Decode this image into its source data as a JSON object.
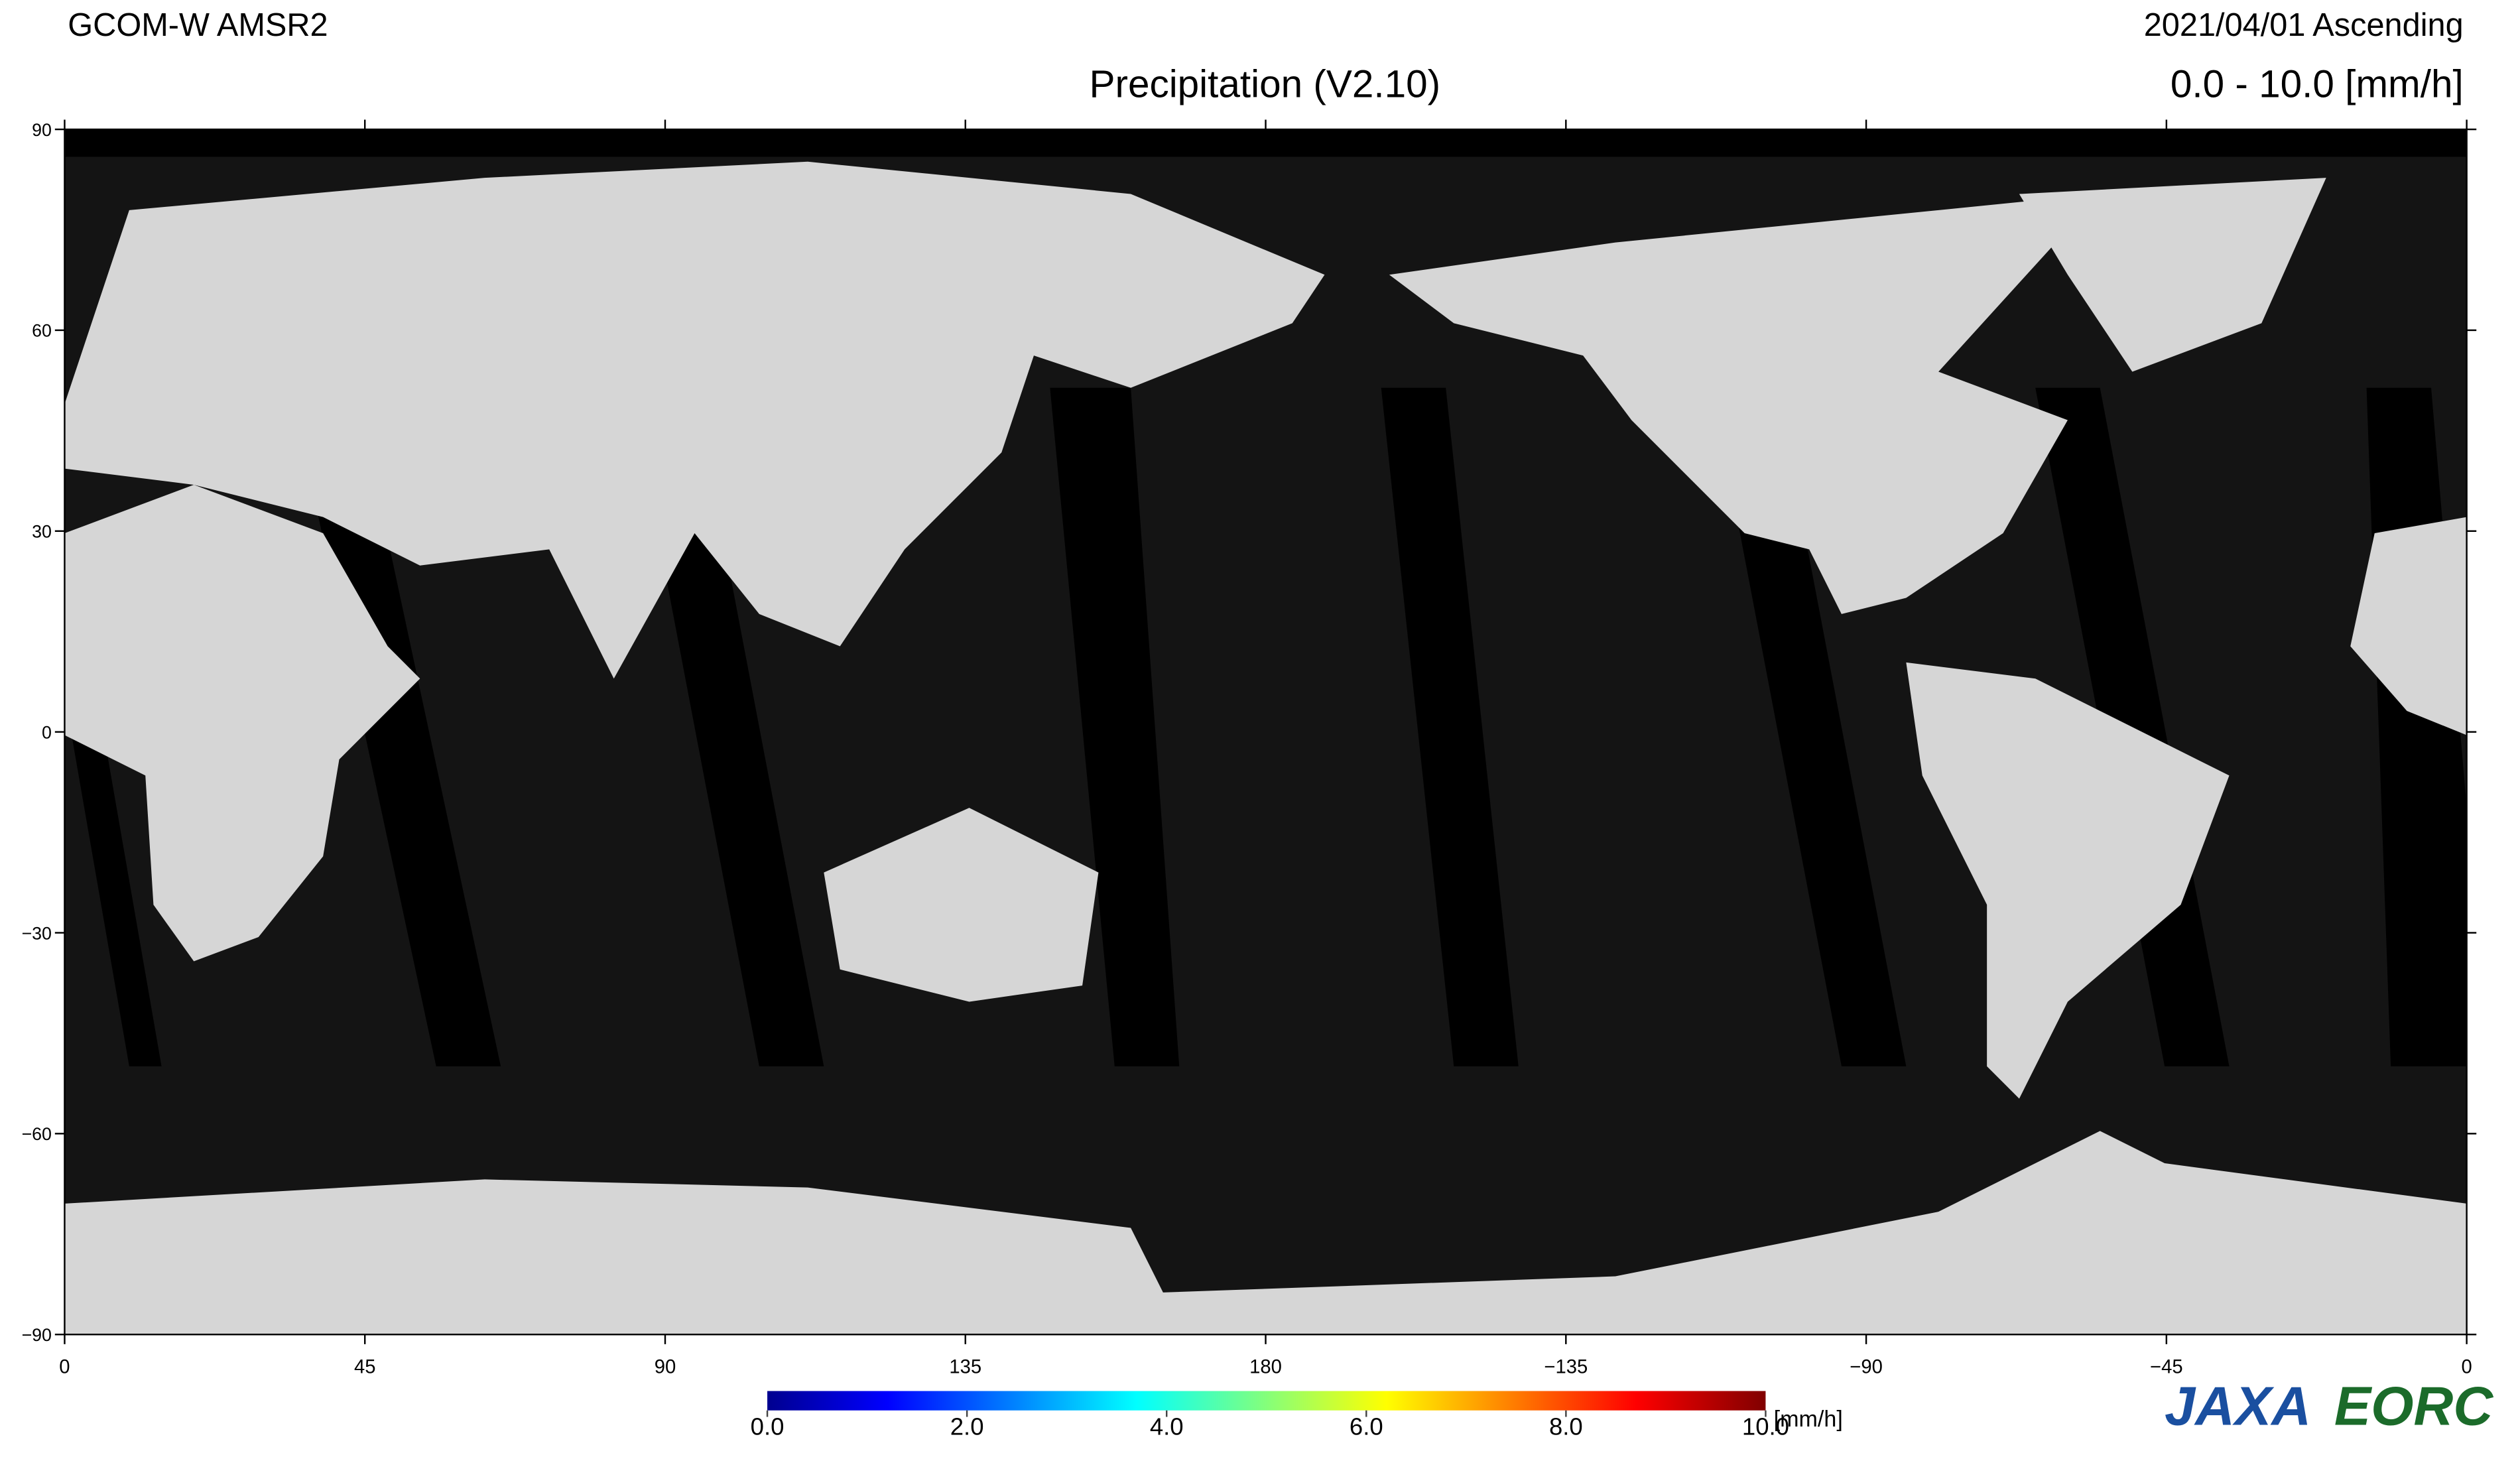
{
  "header": {
    "satellite": "GCOM-W  AMSR2",
    "date": "2021/04/01  Ascending",
    "title": "Precipitation (V2.10)",
    "range": "0.0  - 10.0 [mm/h]"
  },
  "map": {
    "xticks": [
      {
        "value": 0,
        "label": "0"
      },
      45,
      90,
      135,
      180,
      {
        "value": 225,
        "label": "−135"
      },
      {
        "value": 270,
        "label": "−90"
      },
      {
        "value": 315,
        "label": "−45"
      },
      {
        "value": 360,
        "label": "0"
      }
    ],
    "yticks": [
      90,
      60,
      30,
      0,
      {
        "value": -30,
        "label": "−30"
      },
      {
        "value": -60,
        "label": "−60"
      },
      {
        "value": -90,
        "label": "−90"
      }
    ]
  },
  "colorbar": {
    "ticks": [
      {
        "value": 0,
        "label": "0.0"
      },
      {
        "value": 2,
        "label": "2.0"
      },
      {
        "value": 4,
        "label": "4.0"
      },
      {
        "value": 6,
        "label": "6.0"
      },
      {
        "value": 8,
        "label": "8.0"
      },
      {
        "value": 10,
        "label": "10.0"
      }
    ],
    "unit": "[mm/h]"
  },
  "logo": {
    "agency": "JAXA",
    "center": "EORC"
  }
}
